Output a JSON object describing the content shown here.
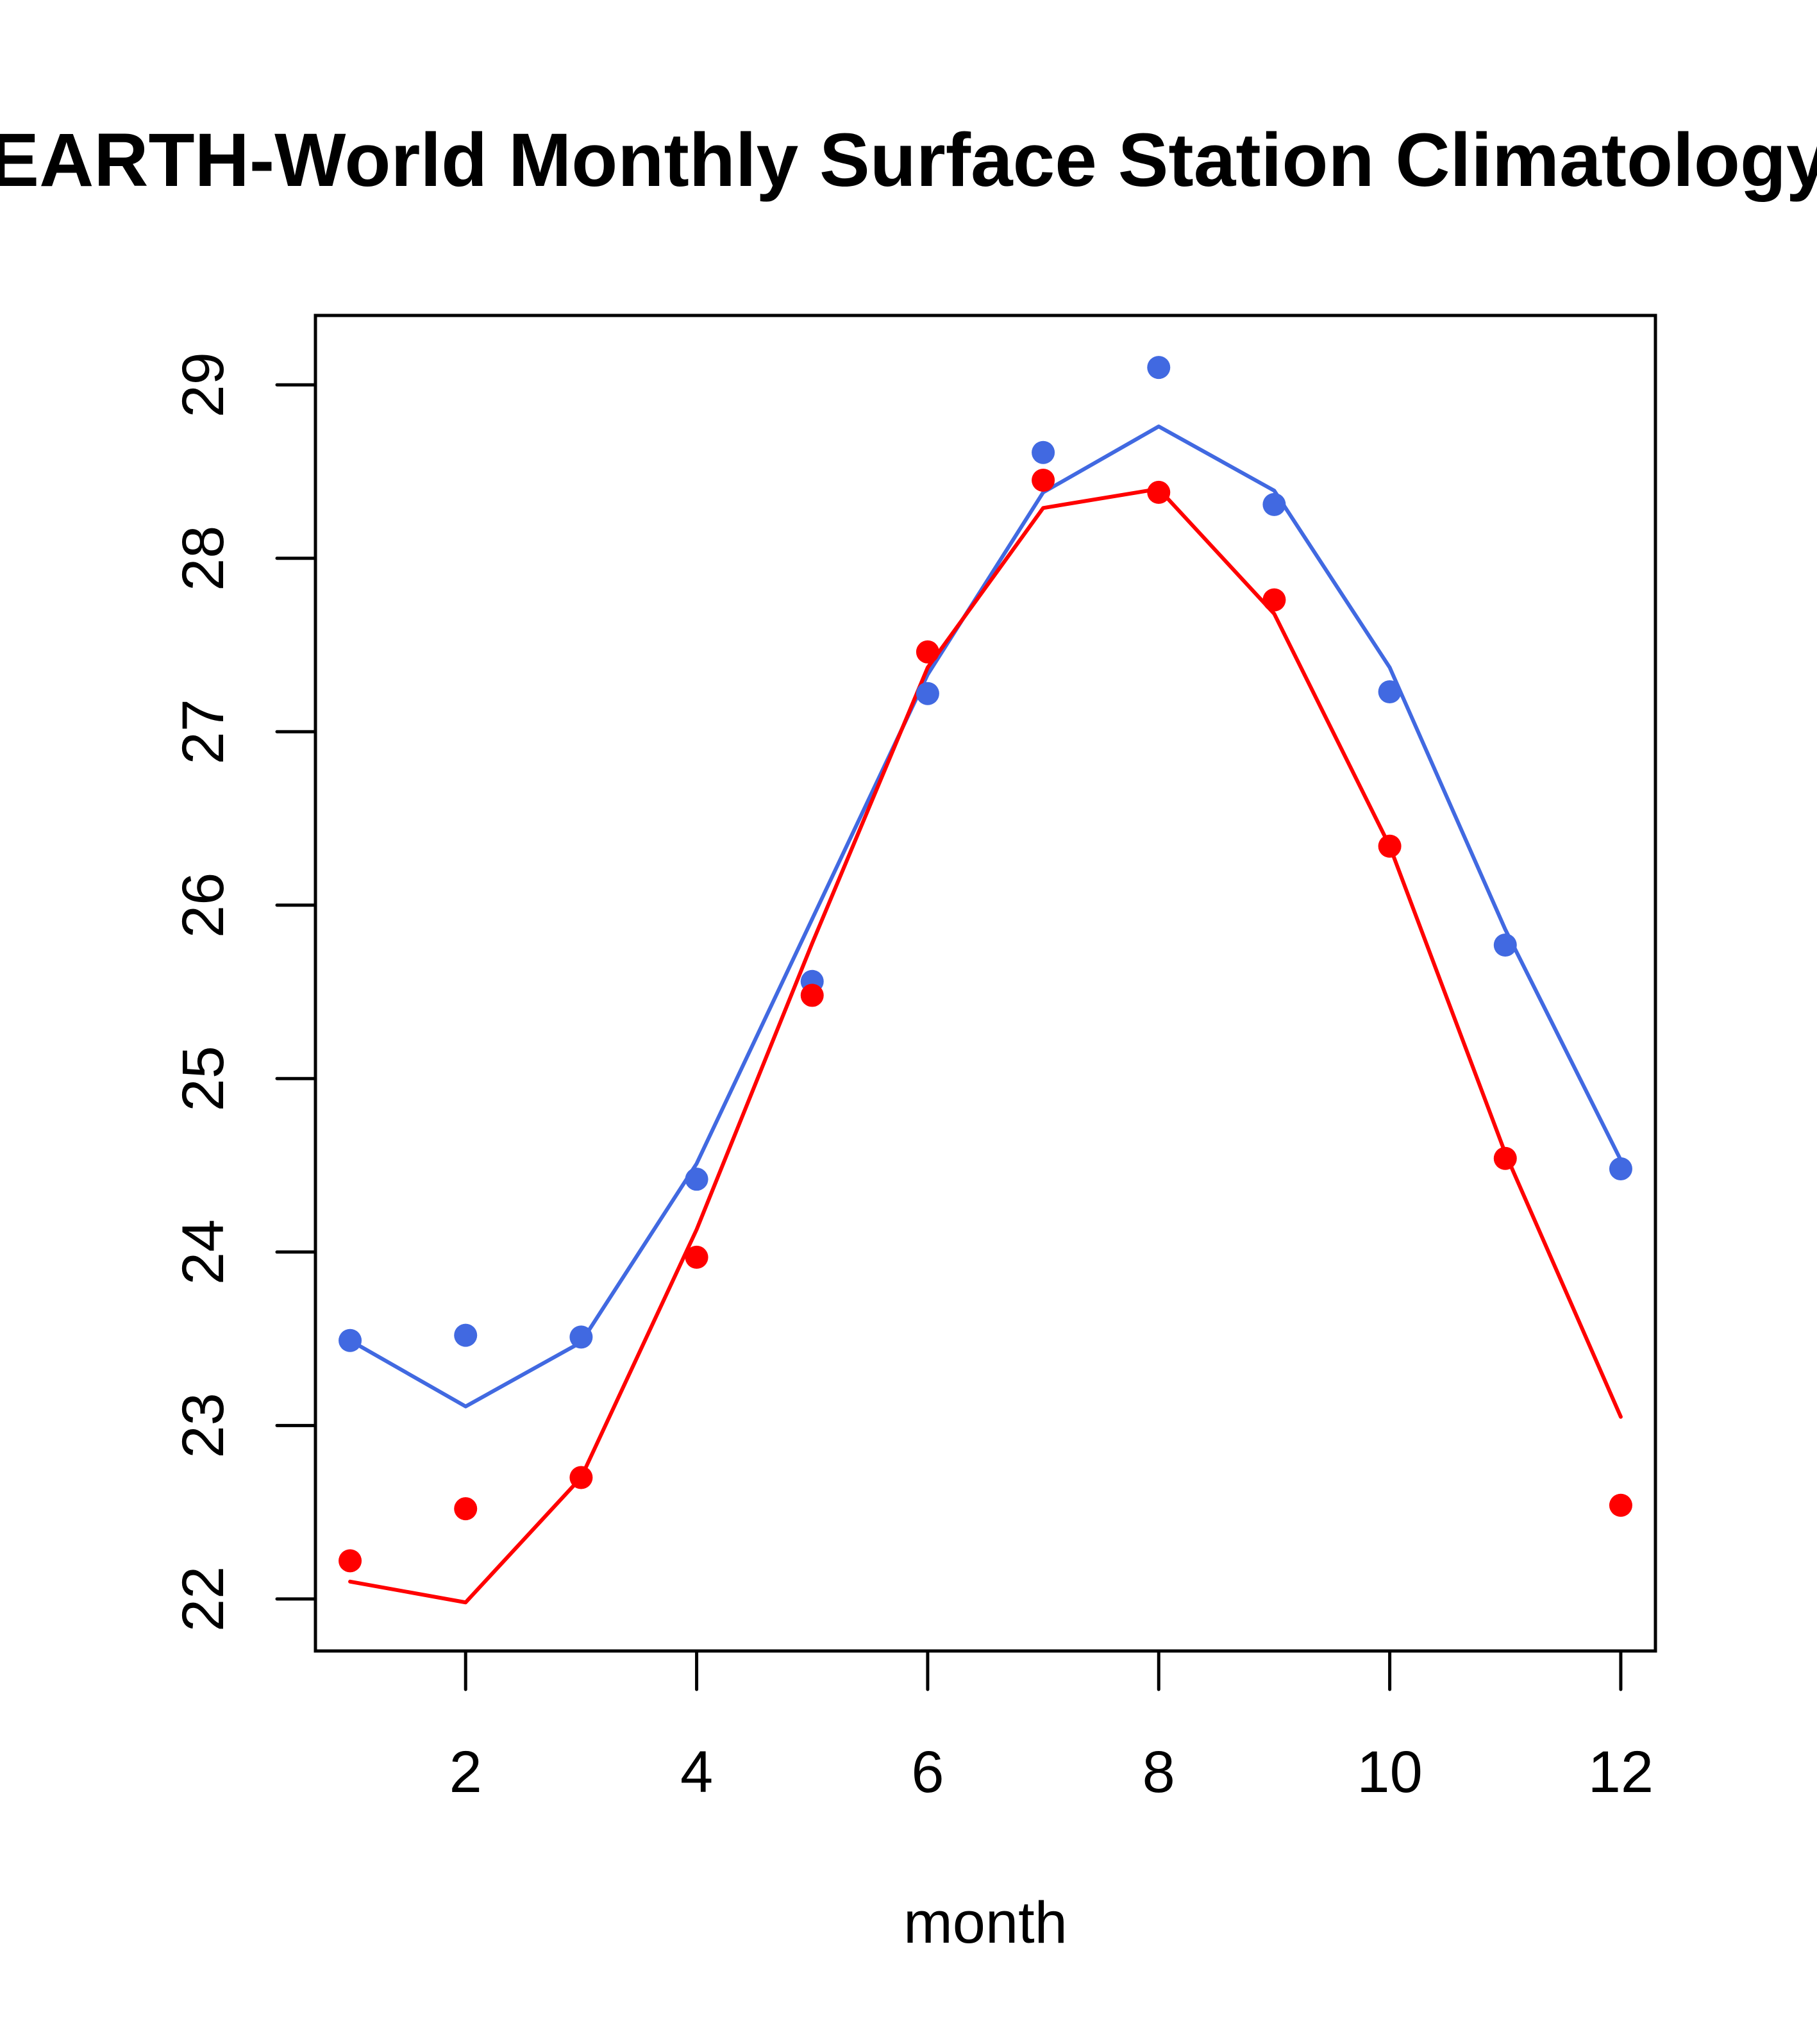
{
  "chart_data": {
    "type": "line",
    "title": "EARTH-World Monthly Surface Station Climatology",
    "xlabel": "month",
    "ylabel": "",
    "xlim": [
      0.7,
      12.3
    ],
    "ylim": [
      21.7,
      29.4
    ],
    "x_ticks": [
      2,
      4,
      6,
      8,
      10,
      12
    ],
    "y_ticks": [
      22,
      23,
      24,
      25,
      26,
      27,
      28,
      29
    ],
    "grid": false,
    "legend": null,
    "x": [
      1,
      2,
      3,
      4,
      5,
      6,
      7,
      8,
      9,
      10,
      11,
      12
    ],
    "series": [
      {
        "name": "blue-points",
        "kind": "points",
        "color": "#4169E1",
        "values": [
          23.49,
          23.52,
          23.51,
          24.42,
          25.56,
          27.22,
          28.61,
          29.1,
          28.31,
          27.23,
          25.77,
          24.48
        ]
      },
      {
        "name": "blue-line",
        "kind": "line",
        "color": "#4169E1",
        "values": [
          23.49,
          23.11,
          23.48,
          24.51,
          25.92,
          27.33,
          28.38,
          28.76,
          28.39,
          27.37,
          25.86,
          24.53
        ]
      },
      {
        "name": "red-points",
        "kind": "points",
        "color": "#FF0000",
        "values": [
          22.22,
          22.52,
          22.7,
          23.97,
          25.48,
          27.46,
          28.45,
          28.38,
          27.76,
          26.34,
          24.54,
          22.54
        ]
      },
      {
        "name": "red-line",
        "kind": "line",
        "color": "#FF0000",
        "values": [
          22.1,
          21.98,
          22.7,
          24.13,
          25.78,
          27.37,
          28.29,
          28.4,
          27.68,
          26.34,
          24.57,
          23.05
        ]
      }
    ]
  }
}
